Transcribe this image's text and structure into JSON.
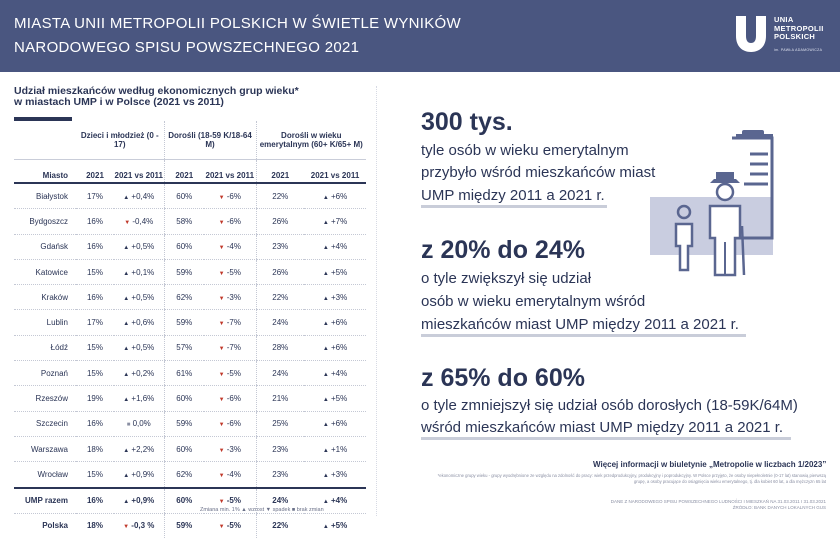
{
  "header": {
    "title_line1": "MIASTA UNII METROPOLII POLSKICH W ŚWIETLE WYNIKÓW",
    "title_line2": "NARODOWEGO SPISU POWSZECHNEGO 2021",
    "logo_line1": "UNIA",
    "logo_line2": "METROPOLII",
    "logo_line3": "POLSKICH",
    "logo_sub": "im. PAWŁA ADAMOWICZA"
  },
  "table": {
    "title_line1": "Udział mieszkańców według ekonomicznych grup wieku*",
    "title_line2": "w miastach UMP i w Polsce (2021 vs 2011)",
    "groups": [
      "Dzieci i młodzież (0 - 17)",
      "Dorośli (18-59 K/18-64 M)",
      "Dorośli w wieku emerytalnym (60+ K/65+ M)"
    ],
    "col_city": "Miasto",
    "col_year": "2021",
    "col_vs": "2021 vs 2011",
    "rows": [
      {
        "city": "Białystok",
        "a": "17%",
        "a_dir": "up",
        "a_ch": "+0,4%",
        "b": "60%",
        "b_dir": "down",
        "b_ch": "-6%",
        "c": "22%",
        "c_dir": "up",
        "c_ch": "+6%"
      },
      {
        "city": "Bydgoszcz",
        "a": "16%",
        "a_dir": "down",
        "a_ch": "-0,4%",
        "b": "58%",
        "b_dir": "down",
        "b_ch": "-6%",
        "c": "26%",
        "c_dir": "up",
        "c_ch": "+7%"
      },
      {
        "city": "Gdańsk",
        "a": "16%",
        "a_dir": "up",
        "a_ch": "+0,5%",
        "b": "60%",
        "b_dir": "down",
        "b_ch": "-4%",
        "c": "23%",
        "c_dir": "up",
        "c_ch": "+4%"
      },
      {
        "city": "Katowice",
        "a": "15%",
        "a_dir": "up",
        "a_ch": "+0,1%",
        "b": "59%",
        "b_dir": "down",
        "b_ch": "-5%",
        "c": "26%",
        "c_dir": "up",
        "c_ch": "+5%"
      },
      {
        "city": "Kraków",
        "a": "16%",
        "a_dir": "up",
        "a_ch": "+0,5%",
        "b": "62%",
        "b_dir": "down",
        "b_ch": "-3%",
        "c": "22%",
        "c_dir": "up",
        "c_ch": "+3%"
      },
      {
        "city": "Lublin",
        "a": "17%",
        "a_dir": "up",
        "a_ch": "+0,6%",
        "b": "59%",
        "b_dir": "down",
        "b_ch": "-7%",
        "c": "24%",
        "c_dir": "up",
        "c_ch": "+6%"
      },
      {
        "city": "Łódź",
        "a": "15%",
        "a_dir": "up",
        "a_ch": "+0,5%",
        "b": "57%",
        "b_dir": "down",
        "b_ch": "-7%",
        "c": "28%",
        "c_dir": "up",
        "c_ch": "+6%"
      },
      {
        "city": "Poznań",
        "a": "15%",
        "a_dir": "up",
        "a_ch": "+0,2%",
        "b": "61%",
        "b_dir": "down",
        "b_ch": "-5%",
        "c": "24%",
        "c_dir": "up",
        "c_ch": "+4%"
      },
      {
        "city": "Rzeszów",
        "a": "19%",
        "a_dir": "up",
        "a_ch": "+1,6%",
        "b": "60%",
        "b_dir": "down",
        "b_ch": "-6%",
        "c": "21%",
        "c_dir": "up",
        "c_ch": "+5%"
      },
      {
        "city": "Szczecin",
        "a": "16%",
        "a_dir": "none",
        "a_ch": "0,0%",
        "b": "59%",
        "b_dir": "down",
        "b_ch": "-6%",
        "c": "25%",
        "c_dir": "up",
        "c_ch": "+6%"
      },
      {
        "city": "Warszawa",
        "a": "18%",
        "a_dir": "up",
        "a_ch": "+2,2%",
        "b": "60%",
        "b_dir": "down",
        "b_ch": "-3%",
        "c": "23%",
        "c_dir": "up",
        "c_ch": "+1%"
      },
      {
        "city": "Wrocław",
        "a": "15%",
        "a_dir": "up",
        "a_ch": "+0,9%",
        "b": "62%",
        "b_dir": "down",
        "b_ch": "-4%",
        "c": "23%",
        "c_dir": "up",
        "c_ch": "+3%"
      }
    ],
    "summary": [
      {
        "city": "UMP razem",
        "a": "16%",
        "a_dir": "up",
        "a_ch": "+0,9%",
        "b": "60%",
        "b_dir": "down",
        "b_ch": "-5%",
        "c": "24%",
        "c_dir": "up",
        "c_ch": "+4%"
      },
      {
        "city": "Polska",
        "a": "18%",
        "a_dir": "down",
        "a_ch": "-0,3 %",
        "b": "59%",
        "b_dir": "down",
        "b_ch": "-5%",
        "c": "22%",
        "c_dir": "up",
        "c_ch": "+5%"
      }
    ],
    "legend": "Zmiana min. 1%  ▲ wzrost  ▼ spadek  ■ brak zmian"
  },
  "stats": [
    {
      "big": "300 tys.",
      "lines": [
        "tyle osób w wieku emerytalnym",
        "przybyło wśród mieszkańców miast",
        "UMP między 2011 a 2021 r."
      ]
    },
    {
      "big": "z 20% do 24%",
      "lines": [
        "o tyle zwiększył się udział",
        "osób w wieku emerytalnym wśród",
        "mieszkańców miast UMP między 2011 a 2021 r."
      ]
    },
    {
      "big": "z 65% do 60%",
      "lines": [
        "o tyle zmniejszył się udział osób dorosłych (18-59K/64M)",
        "wśród mieszkańców miast UMP między 2011 a 2021 r."
      ]
    }
  ],
  "more_info": "Więcej informacji w biuletynie „Metropolie w liczbach 1/2023”",
  "footnote": "*ekonomiczne grupy wieku - grupy wyodrębnione ze względu na zdolność do pracy: wiek przedprodukcyjny, produkcyjny i poprodukcyjny. W Polsce przyjęto, że osoby niepełnoletnie (0-17 lat) stanowią pierwszą grupę, a osoby pracujące do osiągnięcia wieku emerytalnego, tj. dla kobiet 60 lat, a dla mężczyzn 65 lat",
  "source_line1": "DANE Z NARODOWEGO SPISU POWSZECHNEGO LUDNOŚCI I MIESZKAŃ NA 31.03.2011 I 31.03.2021",
  "source_line2": "ŹRÓDŁO: BANK DANYCH LOKALNYCH GUS",
  "colors": {
    "header_bg": "#4a5680",
    "text": "#2b3556",
    "up": "#2b3556",
    "down": "#c0392b",
    "icon": "#5a6690",
    "icon_bg": "#c9cde0"
  }
}
